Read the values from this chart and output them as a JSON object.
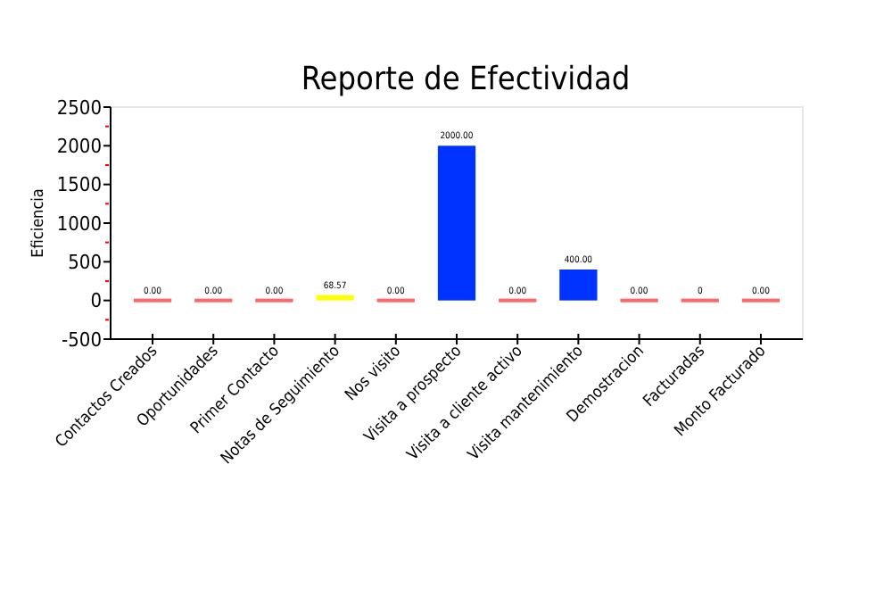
{
  "chart_data": {
    "type": "bar",
    "title": "Reporte de Efectividad",
    "ylabel": "Eficiencia",
    "categories": [
      "Contactos Creados",
      "Oportunidades",
      "Primer Contacto",
      "Notas de Seguimiento",
      "Nos visito",
      "Visita a prospecto",
      "Visita a cliente activo",
      "Visita mantenimiento",
      "Demostracion",
      "Facturadas",
      "Monto Facturado"
    ],
    "values": [
      0,
      0,
      0,
      68.57,
      0,
      2000,
      0,
      400,
      0,
      0,
      0
    ],
    "colors": [
      "#ff6666",
      "#ff6666",
      "#ff6666",
      "#ffff00",
      "#ff6666",
      "#0033ff",
      "#ff6666",
      "#0033ff",
      "#ff6666",
      "#ff6666",
      "#ff6666"
    ],
    "value_labels": [
      "0.00",
      "0.00",
      "0.00",
      "68.57",
      "0.00",
      "2000.00",
      "0.00",
      "400.00",
      "0.00",
      "0",
      "0.00"
    ],
    "ylim": [
      -500,
      2500
    ],
    "yticks": [
      -500,
      {
        "value": -250,
        "label": null
      },
      0,
      {
        "value": 250,
        "label": null
      },
      500,
      {
        "value": 750,
        "label": null
      },
      1000,
      {
        "value": 1250,
        "label": null
      },
      1500,
      {
        "value": 1750,
        "label": null
      },
      2000,
      {
        "value": 2250,
        "label": null
      },
      2500
    ],
    "grid": false
  }
}
